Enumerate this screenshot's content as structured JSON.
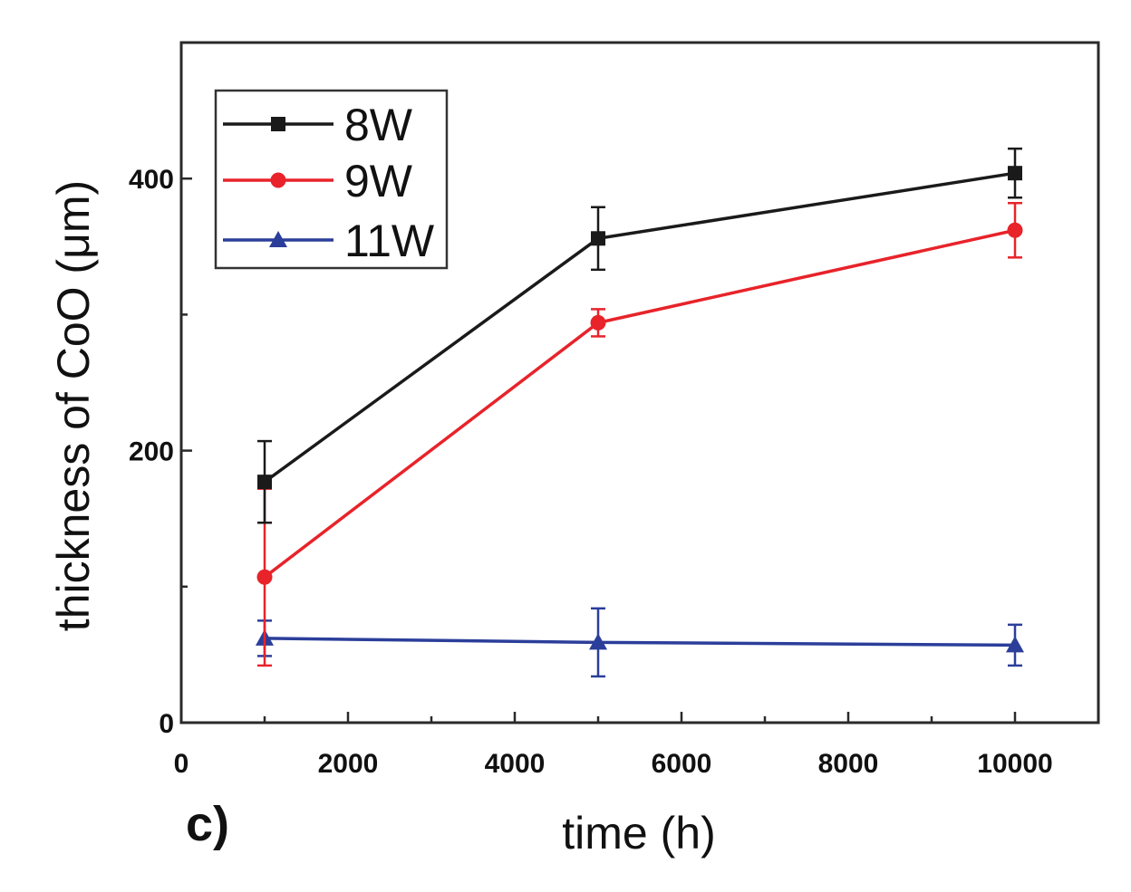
{
  "chart_data": {
    "type": "line",
    "panel_label": "c)",
    "xlabel": "time (h)",
    "ylabel": "thickness of CoO (μm)",
    "xlim": [
      0,
      11000
    ],
    "ylim": [
      0,
      500
    ],
    "xticks": [
      0,
      2000,
      4000,
      6000,
      8000,
      10000
    ],
    "xtick_labels": [
      "0",
      "2000",
      "4000",
      "6000",
      "8000",
      "10000"
    ],
    "yticks": [
      0,
      200,
      400
    ],
    "ytick_labels": [
      "0",
      "200",
      "400"
    ],
    "grid": false,
    "legend_position": "top-left",
    "series": [
      {
        "name": "8W",
        "color": "#1a1a1a",
        "marker": "square",
        "x": [
          1000,
          5000,
          10000
        ],
        "y": [
          177,
          356,
          404
        ],
        "error": [
          30,
          23,
          18
        ]
      },
      {
        "name": "9W",
        "color": "#e8232a",
        "marker": "circle",
        "x": [
          1000,
          5000,
          10000
        ],
        "y": [
          107,
          294,
          362
        ],
        "error": [
          65,
          10,
          20
        ]
      },
      {
        "name": "11W",
        "color": "#2b3e9a",
        "marker": "triangle",
        "x": [
          1000,
          5000,
          10000
        ],
        "y": [
          62,
          59,
          57
        ],
        "error": [
          13,
          25,
          15
        ]
      }
    ]
  }
}
